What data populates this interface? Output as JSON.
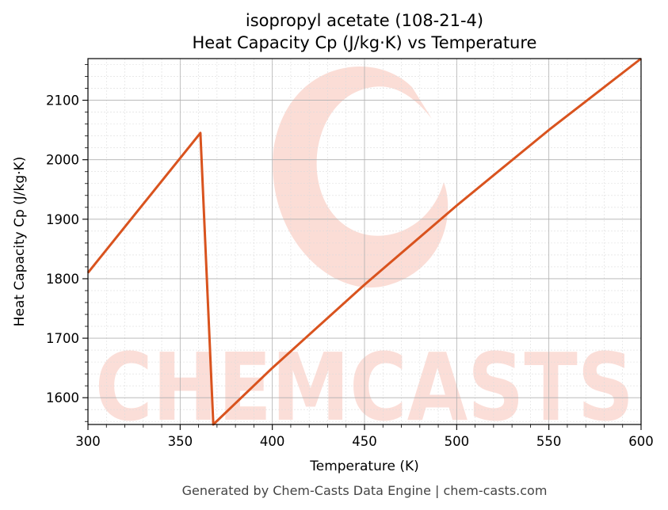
{
  "chart_data": {
    "type": "line",
    "title": "isopropyl acetate (108-21-4)",
    "subtitle": "Heat Capacity Cp (J/kg·K) vs Temperature",
    "xlabel": "Temperature (K)",
    "ylabel": "Heat Capacity Cp (J/kg·K)",
    "xlim": [
      300,
      600
    ],
    "ylim": [
      1555,
      2170
    ],
    "x_ticks": [
      300,
      350,
      400,
      450,
      500,
      550,
      600
    ],
    "y_ticks": [
      1600,
      1700,
      1800,
      1900,
      2000,
      2100
    ],
    "grid": true,
    "series": [
      {
        "color": "#d9531e",
        "points": [
          [
            300,
            1810
          ],
          [
            361,
            2045
          ],
          [
            368,
            1555
          ],
          [
            400,
            1650
          ],
          [
            450,
            1790
          ],
          [
            500,
            1923
          ],
          [
            550,
            2050
          ],
          [
            600,
            2170
          ]
        ]
      }
    ]
  },
  "watermark": {
    "text": "CHEMCASTS",
    "color": "#fbd9d2"
  },
  "footer": "Generated by Chem-Casts Data Engine | chem-casts.com"
}
